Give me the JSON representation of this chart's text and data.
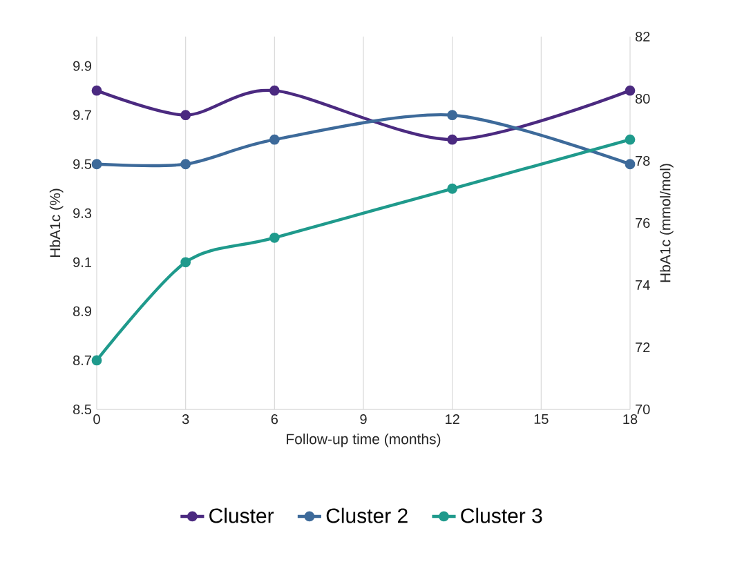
{
  "chart_data": {
    "type": "line",
    "x": [
      0,
      3,
      6,
      12,
      18
    ],
    "xlabel": "Follow-up time (months)",
    "ylabel": "HbA1c (%)",
    "y2label": "HbA1c (mmol/mol)",
    "xlim": [
      0,
      18
    ],
    "xticks": [
      0,
      3,
      6,
      9,
      12,
      15,
      18
    ],
    "ylim": [
      8.5,
      10.02
    ],
    "yticks": [
      8.5,
      8.7,
      8.9,
      9.1,
      9.3,
      9.5,
      9.7,
      9.9
    ],
    "y2lim": [
      70,
      82
    ],
    "y2ticks": [
      70,
      72,
      74,
      76,
      78,
      80,
      82
    ],
    "grid": "x",
    "legend": "bottom",
    "marker": "circle",
    "series": [
      {
        "name": "Cluster",
        "color": "#4b2a80",
        "values": [
          9.8,
          9.7,
          9.8,
          9.6,
          9.8
        ]
      },
      {
        "name": "Cluster 2",
        "color": "#3d6a9a",
        "values": [
          9.5,
          9.5,
          9.6,
          9.7,
          9.5
        ]
      },
      {
        "name": "Cluster 3",
        "color": "#1f9a8c",
        "values": [
          8.7,
          9.1,
          9.2,
          9.4,
          9.6
        ]
      }
    ]
  }
}
